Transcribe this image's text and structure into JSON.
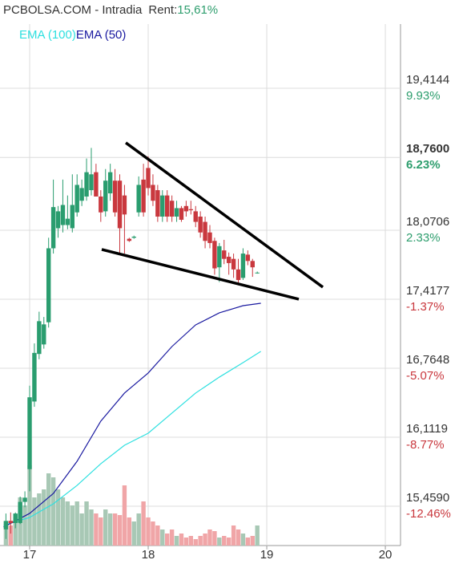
{
  "chart_data": {
    "type": "candlestick",
    "title": "PCBOLSA.COM - Intradia",
    "rent_label": "Rent:",
    "rent_value": "15,61%",
    "rent_color": "#2e9e6e",
    "up_color": "#2a9d6f",
    "down_color": "#c9383e",
    "volume_up_color": "#a8c8b5",
    "volume_down_color": "#f0a5a7",
    "grid": true,
    "xlim": [
      16.75,
      20.128
    ],
    "ylim": [
      15.087,
      20.022
    ],
    "xticks": [
      17,
      18,
      19,
      20
    ],
    "yticks": [
      {
        "value": 19.4144,
        "label": "19,4144"
      },
      {
        "value": 18.76,
        "label": "18,7600"
      },
      {
        "value": 18.0706,
        "label": "18,0706"
      },
      {
        "value": 17.4177,
        "label": "17,4177"
      },
      {
        "value": 16.7648,
        "label": "16,7648"
      },
      {
        "value": 16.1119,
        "label": "16,1119"
      },
      {
        "value": 15.459,
        "label": "15,4590"
      }
    ],
    "tick_changes": [
      {
        "value": 9.93,
        "label": "9.93%"
      },
      {
        "value": 6.23,
        "label": "6.23%"
      },
      {
        "value": 2.33,
        "label": "2.33%"
      },
      {
        "value": -1.37,
        "label": "-1.37%"
      },
      {
        "value": -5.07,
        "label": "-5.07%"
      },
      {
        "value": -8.77,
        "label": "-8.77%"
      },
      {
        "value": -12.46,
        "label": "-12.46%"
      }
    ],
    "highlight_tick": 1,
    "x": [
      16.8,
      16.84,
      16.88,
      16.92,
      16.96,
      17.0,
      17.04,
      17.08,
      17.12,
      17.16,
      17.2,
      17.24,
      17.28,
      17.32,
      17.36,
      17.4,
      17.44,
      17.48,
      17.52,
      17.56,
      17.6,
      17.64,
      17.68,
      17.72,
      17.76,
      17.8,
      17.84,
      17.88,
      17.92,
      17.96,
      18.0,
      18.04,
      18.08,
      18.12,
      18.16,
      18.2,
      18.24,
      18.28,
      18.32,
      18.36,
      18.4,
      18.44,
      18.48,
      18.52,
      18.56,
      18.6,
      18.64,
      18.68,
      18.72,
      18.76,
      18.8,
      18.84,
      18.88,
      18.92
    ],
    "open": [
      15.24,
      15.32,
      15.3,
      15.3,
      15.5,
      15.81,
      16.45,
      16.9,
      16.99,
      17.2,
      17.9,
      18.09,
      18.12,
      18.12,
      18.09,
      18.24,
      18.35,
      18.39,
      18.45,
      18.62,
      18.39,
      18.25,
      18.42,
      18.54,
      18.54,
      18.4,
      17.99,
      18.0,
      18.24,
      18.55,
      18.66,
      18.5,
      18.45,
      18.2,
      18.4,
      18.35,
      18.2,
      18.28,
      18.3,
      18.27,
      18.25,
      18.2,
      18.15,
      18.05,
      17.97,
      17.72,
      17.88,
      17.82,
      17.8,
      17.7,
      17.62,
      17.84,
      17.78,
      17.67
    ],
    "high": [
      15.39,
      15.4,
      15.4,
      15.55,
      15.6,
      16.6,
      17.0,
      17.3,
      17.25,
      18.0,
      18.55,
      18.3,
      18.55,
      18.4,
      18.6,
      18.6,
      18.55,
      18.75,
      18.85,
      18.7,
      18.45,
      18.65,
      18.7,
      18.65,
      18.6,
      18.5,
      18.0,
      18.02,
      18.58,
      18.7,
      18.77,
      18.6,
      18.5,
      18.45,
      18.45,
      18.4,
      18.35,
      18.3,
      18.35,
      18.35,
      18.3,
      18.25,
      18.2,
      18.12,
      18.0,
      17.95,
      17.98,
      17.86,
      17.85,
      17.8,
      17.9,
      17.88,
      17.8,
      17.68
    ],
    "low": [
      15.15,
      15.2,
      15.25,
      15.29,
      15.45,
      15.6,
      16.4,
      16.85,
      16.95,
      17.15,
      17.85,
      18.0,
      18.05,
      18.08,
      18.05,
      18.2,
      18.3,
      18.35,
      18.4,
      18.4,
      18.15,
      18.2,
      18.35,
      18.2,
      17.85,
      17.85,
      17.96,
      17.99,
      18.2,
      18.2,
      18.4,
      18.3,
      18.15,
      18.15,
      18.15,
      18.15,
      18.15,
      18.15,
      18.2,
      18.22,
      18.1,
      18.0,
      17.9,
      17.9,
      17.65,
      17.58,
      17.75,
      17.65,
      17.62,
      17.55,
      17.6,
      17.74,
      17.63,
      17.66
    ],
    "close": [
      15.32,
      15.3,
      15.39,
      15.5,
      15.54,
      16.49,
      16.91,
      17.21,
      17.18,
      17.9,
      18.29,
      18.25,
      18.31,
      18.18,
      18.31,
      18.5,
      18.47,
      18.62,
      18.6,
      18.39,
      18.24,
      18.54,
      18.62,
      18.24,
      18.09,
      18.22,
      17.97,
      18.01,
      18.5,
      18.24,
      18.47,
      18.35,
      18.2,
      18.4,
      18.2,
      18.2,
      18.28,
      18.17,
      18.25,
      18.26,
      18.15,
      18.05,
      17.97,
      17.95,
      17.71,
      17.92,
      17.8,
      17.76,
      17.7,
      17.6,
      17.85,
      17.78,
      17.72,
      17.67
    ],
    "volume": [
      30,
      25,
      35,
      60,
      50,
      100,
      60,
      65,
      70,
      90,
      85,
      70,
      60,
      55,
      50,
      55,
      40,
      55,
      45,
      40,
      35,
      45,
      40,
      40,
      38,
      75,
      35,
      30,
      40,
      55,
      35,
      30,
      25,
      20,
      15,
      20,
      12,
      15,
      10,
      12,
      8,
      12,
      15,
      20,
      18,
      10,
      12,
      10,
      25,
      20,
      15,
      10,
      12,
      25
    ],
    "series": [
      {
        "name": "EMA (100)",
        "color": "#2ee0e0",
        "x": [
          16.78,
          17.0,
          17.2,
          17.4,
          17.6,
          17.8,
          18.0,
          18.2,
          18.4,
          18.6,
          18.8,
          18.95
        ],
        "values": [
          15.277,
          15.353,
          15.482,
          15.656,
          15.861,
          16.036,
          16.15,
          16.34,
          16.53,
          16.681,
          16.818,
          16.924
        ]
      },
      {
        "name": "EMA (50)",
        "color": "#1a1aa0",
        "x": [
          16.78,
          17.0,
          17.2,
          17.4,
          17.6,
          17.8,
          18.0,
          18.2,
          18.4,
          18.6,
          18.8,
          18.95
        ],
        "values": [
          15.262,
          15.391,
          15.58,
          15.884,
          16.264,
          16.53,
          16.72,
          16.97,
          17.175,
          17.289,
          17.357,
          17.38
        ]
      }
    ],
    "trendlines": [
      {
        "color": "#000000",
        "x": [
          17.811,
          19.473
        ],
        "values": [
          18.899,
          17.532
        ]
      },
      {
        "color": "#000000",
        "x": [
          17.608,
          19.27
        ],
        "values": [
          17.889,
          17.418
        ]
      }
    ]
  }
}
